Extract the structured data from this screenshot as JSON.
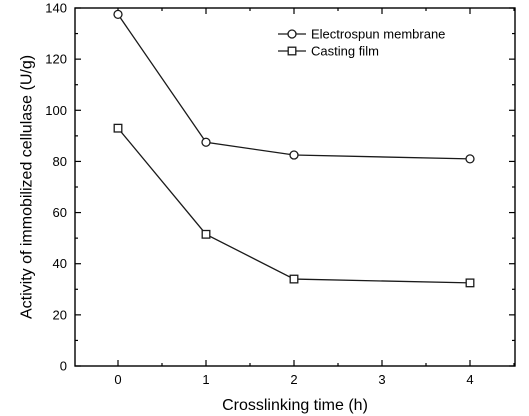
{
  "chart_data": {
    "type": "line",
    "x_categories": [
      "0",
      "1",
      "2",
      "3",
      "4"
    ],
    "x_index_values": [
      0,
      1,
      2,
      4
    ],
    "xlabel": "Crosslinking  time (h)",
    "ylabel": "Activity of immobilized cellulase (U/g)",
    "ylim": [
      0,
      140
    ],
    "yticks": [
      0,
      20,
      40,
      60,
      80,
      100,
      120,
      140
    ],
    "grid": false,
    "legend_position": "top-right",
    "series": [
      {
        "name": "Electrospun membrane",
        "marker": "circle",
        "values": [
          137.5,
          87.5,
          82.5,
          81.0
        ]
      },
      {
        "name": "Casting film",
        "marker": "square",
        "values": [
          93.0,
          51.5,
          34.0,
          32.5
        ]
      }
    ]
  },
  "colors": {
    "line": "#1a1a1a",
    "axis": "#000000",
    "marker_fill": "#ffffff"
  }
}
